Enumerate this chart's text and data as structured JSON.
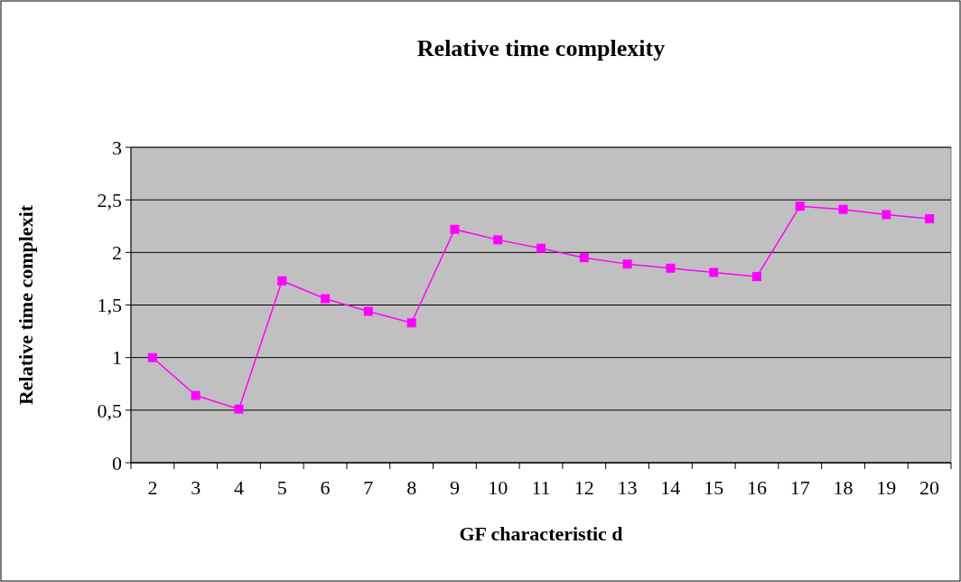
{
  "chart_data": {
    "type": "line",
    "title": "Relative time complexity",
    "xlabel": "GF characteristic d",
    "ylabel": "Relative time complexit",
    "categories": [
      "2",
      "3",
      "4",
      "5",
      "6",
      "7",
      "8",
      "9",
      "10",
      "11",
      "12",
      "13",
      "14",
      "15",
      "16",
      "17",
      "18",
      "19",
      "20"
    ],
    "series": [
      {
        "color": "#ff00ff",
        "values": [
          1.0,
          0.64,
          0.51,
          1.73,
          1.56,
          1.44,
          1.33,
          2.22,
          2.12,
          2.04,
          1.95,
          1.89,
          1.85,
          1.81,
          1.77,
          2.44,
          2.41,
          2.36,
          2.32
        ]
      }
    ],
    "ylim": [
      0,
      3
    ],
    "yticks": [
      0,
      {
        "value": 0.5,
        "label": "0,5"
      },
      1,
      {
        "value": 1.5,
        "label": "1,5"
      },
      2,
      {
        "value": 2.5,
        "label": "2,5"
      },
      3
    ],
    "grid": "y",
    "marker": "square",
    "line_style": "solid"
  }
}
